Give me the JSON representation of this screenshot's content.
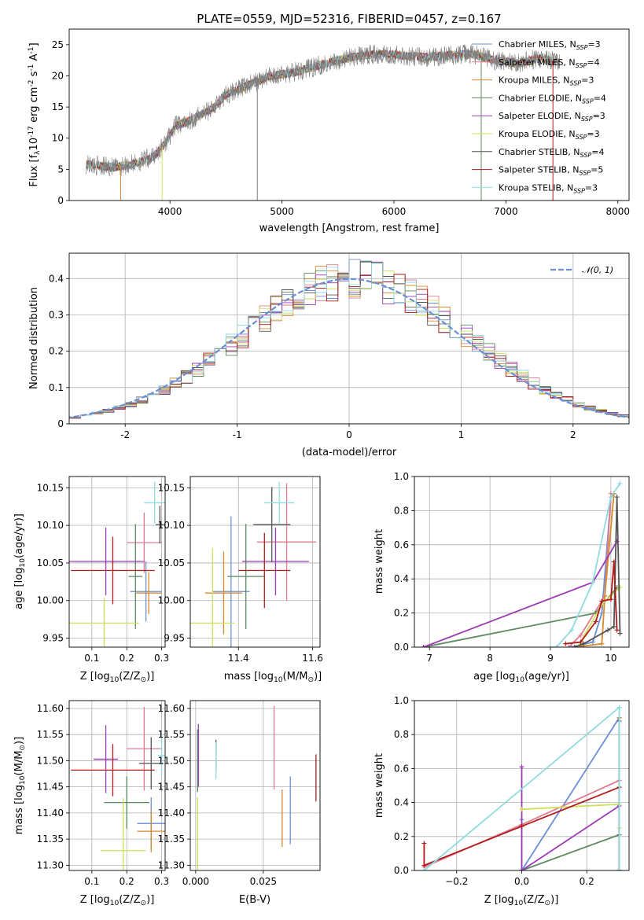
{
  "chart_data": [
    {
      "id": "spectrum",
      "type": "line",
      "title": "PLATE=0559, MJD=52316, FIBERID=0457, z=0.167",
      "xlabel": "wavelength [Angstrom, rest frame]",
      "ylabel": "Flux [f$_\\lambda$10$^{-17}$ erg cm$^{-2}$ s$^{-1}$ A$^{-1}$]",
      "xlim": [
        3100,
        8100
      ],
      "ylim": [
        0,
        27.5
      ],
      "xticks": [
        4000,
        5000,
        6000,
        7000,
        8000
      ],
      "yticks": [
        0,
        5,
        10,
        15,
        20,
        25
      ],
      "grid": false,
      "legend_position": "upper-right",
      "legend": [
        {
          "label": "Chabrier MILES, N",
          "sub": "SSP",
          "eq": "=3",
          "color": "#6a8fd6"
        },
        {
          "label": "Salpeter MILES, N",
          "sub": "SSP",
          "eq": "=4",
          "color": "#e07b91"
        },
        {
          "label": "Kroupa MILES, N",
          "sub": "SSP",
          "eq": "=3",
          "color": "#d98a2b"
        },
        {
          "label": "Chabrier ELODIE, N",
          "sub": "SSP",
          "eq": "=4",
          "color": "#5a8a5e"
        },
        {
          "label": "Salpeter ELODIE, N",
          "sub": "SSP",
          "eq": "=3",
          "color": "#9b3bb3"
        },
        {
          "label": "Kroupa ELODIE, N",
          "sub": "SSP",
          "eq": "=3",
          "color": "#cfe05a"
        },
        {
          "label": "Chabrier STELIB, N",
          "sub": "SSP",
          "eq": "=4",
          "color": "#555555"
        },
        {
          "label": "Salpeter STELIB, N",
          "sub": "SSP",
          "eq": "=5",
          "color": "#b01c1c"
        },
        {
          "label": "Kroupa STELIB, N",
          "sub": "SSP",
          "eq": "=3",
          "color": "#8fdbe0"
        }
      ],
      "data_color": "#808080",
      "continuum": [
        [
          3250,
          5.8
        ],
        [
          3500,
          5.3
        ],
        [
          3700,
          6.0
        ],
        [
          3850,
          7.0
        ],
        [
          3950,
          9.0
        ],
        [
          4050,
          12.0
        ],
        [
          4200,
          13.0
        ],
        [
          4400,
          15.0
        ],
        [
          4500,
          17.0
        ],
        [
          4700,
          18.5
        ],
        [
          4900,
          20.0
        ],
        [
          5100,
          20.5
        ],
        [
          5300,
          21.5
        ],
        [
          5500,
          22.5
        ],
        [
          5700,
          23.2
        ],
        [
          5900,
          23.6
        ],
        [
          6100,
          23.2
        ],
        [
          6300,
          23.0
        ],
        [
          6500,
          23.3
        ],
        [
          6700,
          23.5
        ],
        [
          6900,
          22.5
        ],
        [
          7100,
          22.0
        ],
        [
          7300,
          22.8
        ],
        [
          7480,
          22.2
        ]
      ],
      "spikes": [
        [
          3560,
          0
        ],
        [
          3930,
          0
        ],
        [
          4780,
          0
        ],
        [
          6780,
          0
        ],
        [
          7420,
          0
        ]
      ]
    },
    {
      "id": "residuals",
      "type": "step-histogram",
      "xlabel": "(data-model)/error",
      "ylabel": "Normed distribution",
      "xlim": [
        -2.5,
        2.5
      ],
      "ylim": [
        0,
        0.47
      ],
      "xticks": [
        -2,
        -1,
        0,
        1,
        2
      ],
      "yticks": [
        0.0,
        0.1,
        0.2,
        0.3,
        0.4
      ],
      "grid": true,
      "legend_position": "upper-right",
      "legend": [
        {
          "label": "𝒩(0, 1)",
          "color": "#6a8fd6",
          "style": "dashed"
        }
      ],
      "bin_width": 0.1
    },
    {
      "id": "age-vs-Z",
      "type": "errorbar",
      "xlabel": "Z [log$_{10}$(Z/Z$_\\odot$)]",
      "ylabel": "age  [log$_{10}$(age/yr)]",
      "xlim": [
        0.035,
        0.31
      ],
      "ylim": [
        9.938,
        10.165
      ],
      "xticks": [
        0.1,
        0.2,
        0.3
      ],
      "xticklabels": [
        "0.1",
        "0.2",
        "0.3"
      ],
      "yticks": [
        9.95,
        10.0,
        10.05,
        10.1,
        10.15
      ],
      "yticklabels": [
        "9.95",
        "10.00",
        "10.05",
        "10.10",
        "10.15"
      ],
      "grid": true,
      "points": [
        {
          "x": 0.255,
          "y": 10.012,
          "xerr": 0.045,
          "yerr": 0.04,
          "color": "#6a8fd6"
        },
        {
          "x": 0.25,
          "y": 10.077,
          "xerr": 0.05,
          "yerr": 0.04,
          "color": "#e07b91"
        },
        {
          "x": 0.263,
          "y": 10.01,
          "xerr": 0.037,
          "yerr": 0.028,
          "color": "#d98a2b"
        },
        {
          "x": 0.225,
          "y": 10.032,
          "xerr": 0.02,
          "yerr": 0.07,
          "color": "#5a8a5e"
        },
        {
          "x": 0.14,
          "y": 10.052,
          "xerr": 0.11,
          "yerr": 0.045,
          "color": "#9b3bb3"
        },
        {
          "x": 0.135,
          "y": 9.97,
          "xerr": 0.1,
          "yerr": 0.033,
          "color": "#cfe05a"
        },
        {
          "x": 0.295,
          "y": 10.101,
          "xerr": 0.012,
          "yerr": 0.025,
          "color": "#555555"
        },
        {
          "x": 0.16,
          "y": 10.04,
          "xerr": 0.12,
          "yerr": 0.045,
          "color": "#b01c1c"
        },
        {
          "x": 0.28,
          "y": 10.13,
          "xerr": 0.03,
          "yerr": 0.028,
          "color": "#8fdbe0"
        }
      ]
    },
    {
      "id": "age-vs-mass",
      "type": "errorbar",
      "xlabel": "mass [log$_{10}$(M/M$_\\odot$)]",
      "ylabel": "",
      "xlim": [
        11.27,
        11.62
      ],
      "ylim": [
        9.938,
        10.165
      ],
      "xticks": [
        11.4,
        11.6
      ],
      "xticklabels": [
        "11.4",
        "11.6"
      ],
      "yticks": [
        9.95,
        10.0,
        10.05,
        10.1,
        10.15
      ],
      "yticklabels": [
        "9.95",
        "10.00",
        "10.05",
        "10.10",
        "10.15"
      ],
      "grid": true,
      "points": [
        {
          "x": 11.38,
          "y": 10.012,
          "xerr": 0.05,
          "yerr": 0.1,
          "color": "#6a8fd6"
        },
        {
          "x": 11.53,
          "y": 10.078,
          "xerr": 0.08,
          "yerr": 0.078,
          "color": "#e07b91"
        },
        {
          "x": 11.36,
          "y": 10.01,
          "xerr": 0.05,
          "yerr": 0.055,
          "color": "#d98a2b"
        },
        {
          "x": 11.42,
          "y": 10.032,
          "xerr": 0.05,
          "yerr": 0.07,
          "color": "#5a8a5e"
        },
        {
          "x": 11.5,
          "y": 10.052,
          "xerr": 0.09,
          "yerr": 0.045,
          "color": "#9b3bb3"
        },
        {
          "x": 11.33,
          "y": 9.97,
          "xerr": 0.06,
          "yerr": 0.1,
          "color": "#cfe05a"
        },
        {
          "x": 11.49,
          "y": 10.101,
          "xerr": 0.05,
          "yerr": 0.05,
          "color": "#555555"
        },
        {
          "x": 11.47,
          "y": 10.04,
          "xerr": 0.07,
          "yerr": 0.05,
          "color": "#b01c1c"
        },
        {
          "x": 11.51,
          "y": 10.13,
          "xerr": 0.04,
          "yerr": 0.028,
          "color": "#8fdbe0"
        }
      ]
    },
    {
      "id": "mass-vs-Z",
      "type": "errorbar",
      "xlabel": "Z [log$_{10}$(Z/Z$_\\odot$)]",
      "ylabel": "mass [log$_{10}$(M/M$_\\odot$)]",
      "xlim": [
        0.035,
        0.31
      ],
      "ylim": [
        11.29,
        11.615
      ],
      "xticks": [
        0.1,
        0.2,
        0.3
      ],
      "xticklabels": [
        "0.1",
        "0.2",
        "0.3"
      ],
      "yticks": [
        11.3,
        11.35,
        11.4,
        11.45,
        11.5,
        11.55,
        11.6
      ],
      "yticklabels": [
        "11.30",
        "11.35",
        "11.40",
        "11.45",
        "11.50",
        "11.55",
        "11.60"
      ],
      "grid": true,
      "points": [
        {
          "x": 0.27,
          "y": 11.38,
          "xerr": 0.04,
          "yerr": 0.05,
          "color": "#6a8fd6"
        },
        {
          "x": 0.25,
          "y": 11.523,
          "xerr": 0.05,
          "yerr": 0.08,
          "color": "#e07b91"
        },
        {
          "x": 0.27,
          "y": 11.365,
          "xerr": 0.04,
          "yerr": 0.04,
          "color": "#d98a2b"
        },
        {
          "x": 0.2,
          "y": 11.42,
          "xerr": 0.065,
          "yerr": 0.05,
          "color": "#5a8a5e"
        },
        {
          "x": 0.14,
          "y": 11.503,
          "xerr": 0.035,
          "yerr": 0.065,
          "color": "#9b3bb3"
        },
        {
          "x": 0.19,
          "y": 11.328,
          "xerr": 0.065,
          "yerr": 0.1,
          "color": "#cfe05a"
        },
        {
          "x": 0.27,
          "y": 11.495,
          "xerr": 0.035,
          "yerr": 0.05,
          "color": "#555555"
        },
        {
          "x": 0.16,
          "y": 11.482,
          "xerr": 0.12,
          "yerr": 0.05,
          "color": "#b01c1c"
        },
        {
          "x": 0.3,
          "y": 11.51,
          "xerr": 0.01,
          "yerr": 0.04,
          "color": "#8fdbe0"
        }
      ]
    },
    {
      "id": "mass-vs-ebv",
      "type": "errorbar",
      "xlabel": "E(B-V)",
      "ylabel": "",
      "xlim": [
        -0.002,
        0.046
      ],
      "ylim": [
        11.29,
        11.615
      ],
      "xticks": [
        0.0,
        0.025
      ],
      "xticklabels": [
        "0.000",
        "0.025"
      ],
      "yticks": [
        11.3,
        11.35,
        11.4,
        11.45,
        11.5,
        11.55,
        11.6
      ],
      "yticklabels": [
        "11.30",
        "11.35",
        "11.40",
        "11.45",
        "11.50",
        "11.55",
        "11.60"
      ],
      "grid": true,
      "points": [
        {
          "x": 0.035,
          "y": 11.405,
          "xerr": 0,
          "yerr": 0.065,
          "color": "#6a8fd6"
        },
        {
          "x": 0.029,
          "y": 11.525,
          "xerr": 0,
          "yerr": 0.08,
          "color": "#e07b91"
        },
        {
          "x": 0.032,
          "y": 11.39,
          "xerr": 0,
          "yerr": 0.055,
          "color": "#d98a2b"
        },
        {
          "x": 0.0007,
          "y": 11.5,
          "xerr": 0,
          "yerr": 0.06,
          "color": "#5a8a5e"
        },
        {
          "x": 0.001,
          "y": 11.51,
          "xerr": 0,
          "yerr": 0.06,
          "color": "#9b3bb3"
        },
        {
          "x": 0.0007,
          "y": 11.36,
          "xerr": 0,
          "yerr": 0.07,
          "color": "#cfe05a"
        },
        {
          "x": 0.0075,
          "y": 11.51,
          "xerr": 0,
          "yerr": 0.03,
          "color": "#555555"
        },
        {
          "x": 0.0445,
          "y": 11.467,
          "xerr": 0,
          "yerr": 0.045,
          "color": "#b01c1c"
        },
        {
          "x": 0.0075,
          "y": 11.5,
          "xerr": 0,
          "yerr": 0.035,
          "color": "#8fdbe0"
        }
      ]
    },
    {
      "id": "massweight-vs-age",
      "type": "line",
      "xlabel": "age  [log$_{10}$(age/yr)]",
      "ylabel": "mass weight",
      "xlim": [
        6.75,
        10.3
      ],
      "ylim": [
        0,
        1.0
      ],
      "xticks": [
        7,
        8,
        9,
        10
      ],
      "xticklabels": [
        "7",
        "8",
        "9",
        "10"
      ],
      "yticks": [
        0.0,
        0.2,
        0.4,
        0.6,
        0.8,
        1.0
      ],
      "yticklabels": [
        "0.0",
        "0.2",
        "0.4",
        "0.6",
        "0.8",
        "1.0"
      ],
      "grid": true,
      "series": [
        {
          "color": "#6a8fd6",
          "points": [
            [
              9.35,
              0
            ],
            [
              9.7,
              0.03
            ],
            [
              9.85,
              0.2
            ],
            [
              10.0,
              0.88
            ],
            [
              10.05,
              0.9
            ]
          ]
        },
        {
          "color": "#e07b91",
          "points": [
            [
              9.3,
              0
            ],
            [
              9.5,
              0.07
            ],
            [
              9.9,
              0.3
            ],
            [
              10.0,
              0.9
            ]
          ]
        },
        {
          "color": "#d98a2b",
          "points": [
            [
              9.4,
              0
            ],
            [
              9.85,
              0.02
            ],
            [
              9.9,
              0.3
            ],
            [
              10.05,
              0.9
            ]
          ]
        },
        {
          "color": "#5a8a5e",
          "points": [
            [
              6.9,
              0
            ],
            [
              9.75,
              0.2
            ],
            [
              10.1,
              0.35
            ]
          ]
        },
        {
          "color": "#9b3bb3",
          "points": [
            [
              6.9,
              0
            ],
            [
              9.7,
              0.38
            ],
            [
              10.1,
              0.62
            ]
          ]
        },
        {
          "color": "#cfe05a",
          "points": [
            [
              9.45,
              0
            ],
            [
              9.85,
              0.25
            ],
            [
              10.15,
              0.35
            ]
          ]
        },
        {
          "color": "#555555",
          "points": [
            [
              9.4,
              0
            ],
            [
              9.55,
              0.02
            ],
            [
              9.95,
              0.1
            ],
            [
              10.05,
              0.12
            ],
            [
              10.1,
              0.88
            ],
            [
              10.15,
              0.08
            ]
          ]
        },
        {
          "color": "#b01c1c",
          "points": [
            [
              9.25,
              0.02
            ],
            [
              9.5,
              0.03
            ],
            [
              9.75,
              0.15
            ],
            [
              9.85,
              0.27
            ],
            [
              10.0,
              0.28
            ],
            [
              10.05,
              0.5
            ],
            [
              10.1,
              0.1
            ]
          ]
        },
        {
          "color": "#8fdbe0",
          "points": [
            [
              9.0,
              0
            ],
            [
              9.1,
              0
            ],
            [
              9.35,
              0.1
            ],
            [
              9.7,
              0.38
            ],
            [
              10.0,
              0.88
            ],
            [
              10.15,
              0.96
            ]
          ]
        }
      ]
    },
    {
      "id": "massweight-vs-Z",
      "type": "line",
      "xlabel": "Z [log$_{10}$(Z/Z$_\\odot$)]",
      "ylabel": "mass weight",
      "xlim": [
        -0.33,
        0.33
      ],
      "ylim": [
        0,
        1.0
      ],
      "xticks": [
        -0.2,
        0.0,
        0.2
      ],
      "xticklabels": [
        "−0.2",
        "0.0",
        "0.2"
      ],
      "yticks": [
        0.0,
        0.2,
        0.4,
        0.6,
        0.8,
        1.0
      ],
      "yticklabels": [
        "0.0",
        "0.2",
        "0.4",
        "0.6",
        "0.8",
        "1.0"
      ],
      "grid": true,
      "series": [
        {
          "color": "#6a8fd6",
          "points": [
            [
              0.0,
              0.3
            ],
            [
              0.0,
              0.0
            ],
            [
              0.3,
              0.9
            ],
            [
              0.3,
              0.0
            ]
          ]
        },
        {
          "color": "#e07b91",
          "points": [
            [
              -0.3,
              0.02
            ],
            [
              0.0,
              0.27
            ],
            [
              0.3,
              0.53
            ],
            [
              0.3,
              0.9
            ]
          ]
        },
        {
          "color": "#d98a2b",
          "points": [
            [
              0.3,
              0.0
            ],
            [
              0.3,
              0.9
            ]
          ]
        },
        {
          "color": "#5a8a5e",
          "points": [
            [
              0.0,
              0.0
            ],
            [
              0.3,
              0.21
            ],
            [
              0.3,
              0.0
            ]
          ]
        },
        {
          "color": "#9b3bb3",
          "points": [
            [
              0.0,
              0.61
            ],
            [
              0.0,
              0.0
            ],
            [
              0.3,
              0.38
            ],
            [
              0.3,
              0.0
            ]
          ]
        },
        {
          "color": "#cfe05a",
          "points": [
            [
              0.0,
              0.36
            ],
            [
              0.3,
              0.39
            ],
            [
              0.3,
              0.25
            ]
          ]
        },
        {
          "color": "#555555",
          "points": [
            [
              0.3,
              0.0
            ],
            [
              0.3,
              0.88
            ]
          ]
        },
        {
          "color": "#b01c1c",
          "points": [
            [
              -0.3,
              0.16
            ],
            [
              -0.3,
              0.03
            ],
            [
              0.0,
              0.26
            ],
            [
              0.3,
              0.49
            ],
            [
              0.3,
              0.0
            ]
          ]
        },
        {
          "color": "#8fdbe0",
          "points": [
            [
              -0.3,
              0.0
            ],
            [
              0.3,
              0.96
            ],
            [
              0.3,
              0.0
            ]
          ]
        }
      ]
    }
  ]
}
